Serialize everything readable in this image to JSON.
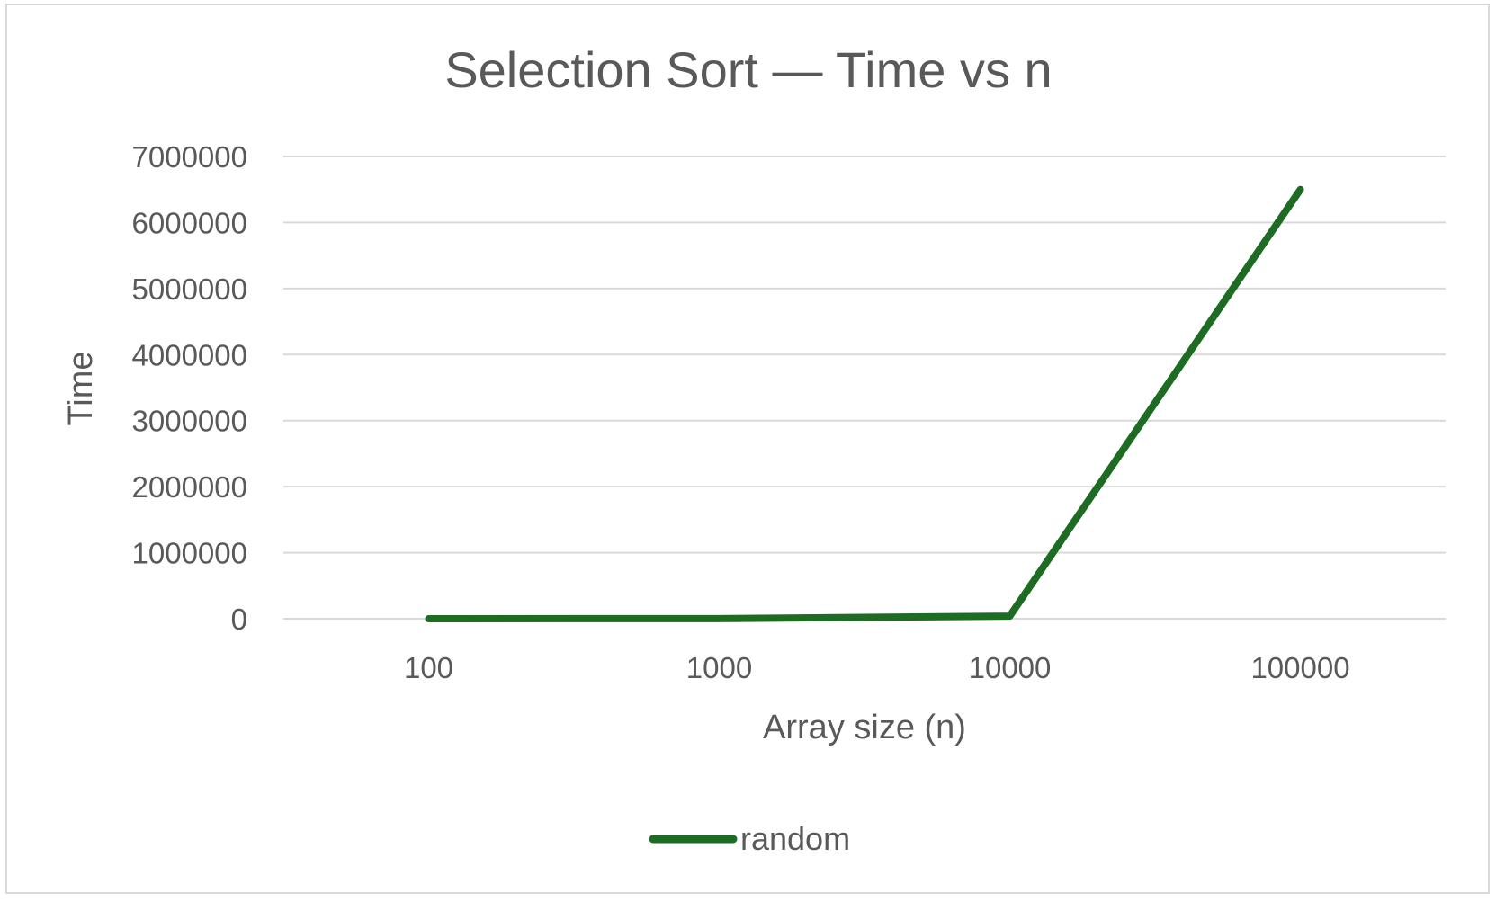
{
  "chart_data": {
    "type": "line",
    "title": "Selection Sort — Time vs n",
    "xlabel": "Array size (n)",
    "ylabel": "Time",
    "categories": [
      "100",
      "1000",
      "10000",
      "100000"
    ],
    "series": [
      {
        "name": "random",
        "values": [
          0,
          2000,
          40000,
          6500000
        ],
        "color": "#1e6b24"
      }
    ],
    "ylim": [
      0,
      7000000
    ],
    "yticks": [
      "0",
      "1000000",
      "2000000",
      "3000000",
      "4000000",
      "5000000",
      "6000000",
      "7000000"
    ],
    "grid": true,
    "legend": "bottom"
  },
  "colors": {
    "gridline": "#d9d9d9",
    "text": "#595959",
    "border": "#d9d9d9"
  }
}
